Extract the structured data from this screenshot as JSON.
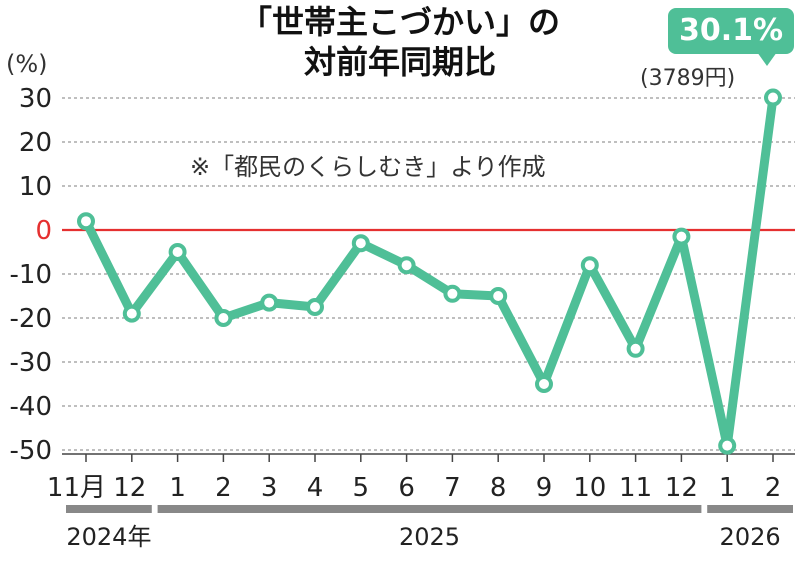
{
  "title_line1": "「世帯主こづかい」の",
  "title_line2": "対前年同期比",
  "unit": "(%)",
  "note": "※「都民のくらしむき」より作成",
  "callout": {
    "value": "30.1%",
    "sub": "(3789円)"
  },
  "colors": {
    "line": "#4fbf97",
    "zero_line": "#e53030",
    "grid": "#999999",
    "year_bar": "#888888"
  },
  "chart_data": {
    "type": "line",
    "title": "「世帯主こづかい」の 対前年同期比",
    "ylabel": "(%)",
    "ylim": [
      -50,
      30
    ],
    "yticks": [
      30,
      20,
      10,
      0,
      -10,
      -20,
      -30,
      -40,
      -50
    ],
    "categories": [
      "11月",
      "12",
      "1",
      "2",
      "3",
      "4",
      "5",
      "6",
      "7",
      "8",
      "9",
      "10",
      "11",
      "12",
      "1",
      "2"
    ],
    "x_tick_labels": [
      "11月",
      "12",
      "1",
      "2",
      "3",
      "4",
      "5",
      "6",
      "7",
      "8",
      "9",
      "10",
      "11",
      "12",
      "1",
      "2"
    ],
    "years": [
      {
        "label": "2024年",
        "from": 0,
        "to": 1
      },
      {
        "label": "2025",
        "from": 2,
        "to": 13
      },
      {
        "label": "2026",
        "from": 14,
        "to": 15
      }
    ],
    "series": [
      {
        "values": [
          2,
          -19,
          -5,
          -20,
          -16.5,
          -17.5,
          -3,
          -8,
          -14.5,
          -15,
          -35,
          -8,
          -27,
          -1.5,
          -49,
          30.1
        ]
      }
    ],
    "annotations": [
      {
        "index": 15,
        "text": "30.1%",
        "sub": "(3789円)"
      }
    ],
    "grid": true,
    "reference_line": 0
  }
}
